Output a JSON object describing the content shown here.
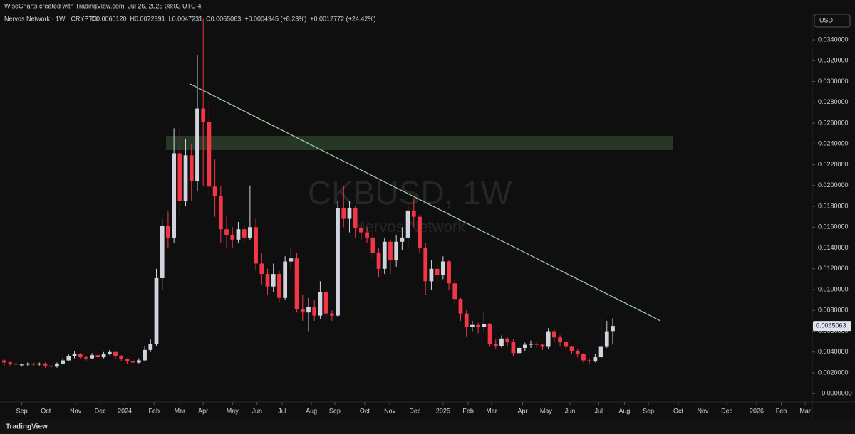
{
  "header": "WiseCharts created with TradingView.com, Jul 26, 2025 08:03 UTC-4",
  "footer": "TradingView",
  "chart_data": {
    "type": "candlestick",
    "title": "CKBUSD, 1W",
    "subtitle": "Nervos Network",
    "symbol_info": "Nervos Network · 1W · CRYPTO",
    "ohlc_readout": [
      "O0.0060120",
      "H0.0072391",
      "L0.0047231",
      "C0.0065063",
      "+0.0004945 (+8.23%)",
      "+0.0012772 (+24.42%)"
    ],
    "currency": "USD",
    "last_price_label": {
      "value": 0.0065063,
      "label": "0.0065063"
    },
    "up_color": "#d1d4dc",
    "down_color": "#f23645",
    "open": [
      0.0032,
      0.003,
      0.0029,
      0.0028,
      0.0028,
      0.0029,
      0.0028,
      0.0029,
      0.0027,
      0.0026,
      0.0029,
      0.0032,
      0.0036,
      0.0038,
      0.0035,
      0.0034,
      0.0037,
      0.0035,
      0.0038,
      0.004,
      0.0036,
      0.0033,
      0.0031,
      0.003,
      0.0032,
      0.0042,
      0.0048,
      0.0111,
      0.0161,
      0.015,
      0.0231,
      0.0185,
      0.0229,
      0.0204,
      0.0274,
      0.0261,
      0.0199,
      0.019,
      0.0158,
      0.0152,
      0.0148,
      0.0158,
      0.015,
      0.016,
      0.0125,
      0.0115,
      0.0103,
      0.0115,
      0.0092,
      0.0127,
      0.013,
      0.0081,
      0.0078,
      0.0083,
      0.0075,
      0.0098,
      0.0077,
      0.0075,
      0.0178,
      0.0168,
      0.0178,
      0.0159,
      0.0155,
      0.015,
      0.0135,
      0.012,
      0.0146,
      0.0128,
      0.0146,
      0.015,
      0.0176,
      0.017,
      0.014,
      0.0108,
      0.012,
      0.0114,
      0.0127,
      0.0106,
      0.0091,
      0.0077,
      0.0064,
      0.0066,
      0.0064,
      0.0067,
      0.0048,
      0.0046,
      0.0053,
      0.005,
      0.0039,
      0.0044,
      0.0047,
      0.0048,
      0.0047,
      0.0045,
      0.006,
      0.0054,
      0.005,
      0.0045,
      0.0041,
      0.0038,
      0.0032,
      0.0031,
      0.0035,
      0.0045,
      0.006012
    ],
    "high": [
      0.0033,
      0.0031,
      0.003,
      0.0029,
      0.003,
      0.003,
      0.003,
      0.003,
      0.0028,
      0.003,
      0.0034,
      0.0038,
      0.0041,
      0.0039,
      0.0036,
      0.0039,
      0.0038,
      0.004,
      0.0042,
      0.0041,
      0.0037,
      0.0034,
      0.0032,
      0.0034,
      0.0046,
      0.0052,
      0.012,
      0.0168,
      0.0175,
      0.0255,
      0.0256,
      0.0245,
      0.024,
      0.0325,
      0.036,
      0.028,
      0.0225,
      0.02,
      0.017,
      0.016,
      0.0165,
      0.0162,
      0.02,
      0.0168,
      0.0135,
      0.012,
      0.0125,
      0.0118,
      0.0132,
      0.014,
      0.0135,
      0.0095,
      0.0092,
      0.009,
      0.0108,
      0.01,
      0.008,
      0.0185,
      0.02,
      0.0185,
      0.018,
      0.0165,
      0.016,
      0.0155,
      0.014,
      0.015,
      0.0148,
      0.0152,
      0.016,
      0.018,
      0.0188,
      0.0172,
      0.0145,
      0.0128,
      0.0125,
      0.0132,
      0.0128,
      0.011,
      0.0092,
      0.008,
      0.007,
      0.0068,
      0.0078,
      0.0068,
      0.0052,
      0.0056,
      0.0055,
      0.0052,
      0.0046,
      0.0049,
      0.0051,
      0.005,
      0.0048,
      0.0063,
      0.0062,
      0.0056,
      0.0051,
      0.0046,
      0.0043,
      0.0039,
      0.0034,
      0.0038,
      0.0073,
      0.007,
      0.0072391
    ],
    "low": [
      0.0027,
      0.0027,
      0.0026,
      0.0026,
      0.0027,
      0.0026,
      0.0027,
      0.0025,
      0.0024,
      0.0025,
      0.0028,
      0.0031,
      0.0034,
      0.0033,
      0.0032,
      0.0033,
      0.0033,
      0.0034,
      0.0037,
      0.0034,
      0.0031,
      0.0029,
      0.0028,
      0.0029,
      0.0031,
      0.004,
      0.0046,
      0.01,
      0.014,
      0.0145,
      0.017,
      0.018,
      0.0185,
      0.0195,
      0.02,
      0.019,
      0.017,
      0.0145,
      0.014,
      0.014,
      0.0145,
      0.0145,
      0.0148,
      0.0118,
      0.0105,
      0.0095,
      0.0098,
      0.0088,
      0.009,
      0.012,
      0.0078,
      0.007,
      0.006,
      0.007,
      0.0072,
      0.0072,
      0.007,
      0.0074,
      0.016,
      0.0155,
      0.015,
      0.0148,
      0.0145,
      0.0128,
      0.0112,
      0.0115,
      0.0115,
      0.0122,
      0.0138,
      0.014,
      0.016,
      0.0135,
      0.0095,
      0.01,
      0.0105,
      0.011,
      0.01,
      0.0085,
      0.007,
      0.0055,
      0.006,
      0.0058,
      0.006,
      0.0045,
      0.0043,
      0.0044,
      0.0046,
      0.0036,
      0.0037,
      0.0041,
      0.0044,
      0.0044,
      0.0042,
      0.0043,
      0.005,
      0.0046,
      0.0042,
      0.0038,
      0.0035,
      0.003,
      0.0029,
      0.003,
      0.0034,
      0.0044,
      0.0047231
    ],
    "close": [
      0.003,
      0.0029,
      0.0028,
      0.0028,
      0.0029,
      0.0028,
      0.0029,
      0.0027,
      0.0026,
      0.0029,
      0.0032,
      0.0036,
      0.0038,
      0.0035,
      0.0034,
      0.0037,
      0.0035,
      0.0038,
      0.004,
      0.0036,
      0.0033,
      0.0031,
      0.003,
      0.0032,
      0.0042,
      0.0048,
      0.0111,
      0.0161,
      0.015,
      0.0231,
      0.0185,
      0.0229,
      0.0204,
      0.0274,
      0.0261,
      0.0199,
      0.019,
      0.0158,
      0.0152,
      0.0148,
      0.0158,
      0.015,
      0.016,
      0.0125,
      0.0115,
      0.0103,
      0.0115,
      0.0092,
      0.0127,
      0.013,
      0.0081,
      0.0078,
      0.0083,
      0.0075,
      0.0098,
      0.0077,
      0.0075,
      0.0178,
      0.0168,
      0.0178,
      0.0159,
      0.0155,
      0.015,
      0.0135,
      0.012,
      0.0146,
      0.0128,
      0.0146,
      0.015,
      0.0176,
      0.017,
      0.014,
      0.0108,
      0.012,
      0.0114,
      0.0127,
      0.0106,
      0.0091,
      0.0077,
      0.0064,
      0.0066,
      0.0064,
      0.0067,
      0.0048,
      0.0046,
      0.0053,
      0.005,
      0.0039,
      0.0044,
      0.0047,
      0.0048,
      0.0047,
      0.0045,
      0.006,
      0.0054,
      0.005,
      0.0045,
      0.0041,
      0.0038,
      0.0032,
      0.0031,
      0.0035,
      0.0045,
      0.006,
      0.0065063
    ],
    "xlim": [
      -0.73,
      138.1
    ],
    "xticks": [
      {
        "value": 3.0,
        "label": "Sep"
      },
      {
        "value": 7.1,
        "label": "Oct"
      },
      {
        "value": 12.2,
        "label": "Nov"
      },
      {
        "value": 16.4,
        "label": "Dec"
      },
      {
        "value": 20.6,
        "label": "2024"
      },
      {
        "value": 25.6,
        "label": "Feb"
      },
      {
        "value": 30.0,
        "label": "Mar"
      },
      {
        "value": 34.0,
        "label": "Apr"
      },
      {
        "value": 39.0,
        "label": "May"
      },
      {
        "value": 43.2,
        "label": "Jun"
      },
      {
        "value": 47.5,
        "label": "Jul"
      },
      {
        "value": 52.5,
        "label": "Aug"
      },
      {
        "value": 56.5,
        "label": "Sep"
      },
      {
        "value": 61.6,
        "label": "Oct"
      },
      {
        "value": 65.9,
        "label": "Nov"
      },
      {
        "value": 70.2,
        "label": "Dec"
      },
      {
        "value": 75.0,
        "label": "2025"
      },
      {
        "value": 79.3,
        "label": "Feb"
      },
      {
        "value": 83.3,
        "label": "Mar"
      },
      {
        "value": 88.6,
        "label": "Apr"
      },
      {
        "value": 92.6,
        "label": "May"
      },
      {
        "value": 96.7,
        "label": "Jun"
      },
      {
        "value": 101.6,
        "label": "Jul"
      },
      {
        "value": 106.0,
        "label": "Aug"
      },
      {
        "value": 110.1,
        "label": "Sep"
      },
      {
        "value": 115.2,
        "label": "Oct"
      },
      {
        "value": 119.4,
        "label": "Nov"
      },
      {
        "value": 123.5,
        "label": "Dec"
      },
      {
        "value": 128.6,
        "label": "2026"
      },
      {
        "value": 132.8,
        "label": "Feb"
      },
      {
        "value": 136.9,
        "label": "Mar"
      }
    ],
    "ylim": [
      -0.0008,
      0.0366
    ],
    "yticks": [
      {
        "value": 0,
        "label": "−0.0000000"
      },
      {
        "value": 0.002,
        "label": "0.0020000"
      },
      {
        "value": 0.004,
        "label": "0.0040000"
      },
      {
        "value": 0.006,
        "label": "0.0060000"
      },
      {
        "value": 0.008,
        "label": "0.0080000"
      },
      {
        "value": 0.01,
        "label": "0.0100000"
      },
      {
        "value": 0.012,
        "label": "0.0120000"
      },
      {
        "value": 0.014,
        "label": "0.0140000"
      },
      {
        "value": 0.016,
        "label": "0.0160000"
      },
      {
        "value": 0.018,
        "label": "0.0180000"
      },
      {
        "value": 0.02,
        "label": "0.0200000"
      },
      {
        "value": 0.022,
        "label": "0.0220000"
      },
      {
        "value": 0.024,
        "label": "0.0240000"
      },
      {
        "value": 0.026,
        "label": "0.0260000"
      },
      {
        "value": 0.028,
        "label": "0.0280000"
      },
      {
        "value": 0.03,
        "label": "0.0300000"
      },
      {
        "value": 0.032,
        "label": "0.0320000"
      },
      {
        "value": 0.034,
        "label": "0.0340000"
      }
    ],
    "grid": false
  }
}
